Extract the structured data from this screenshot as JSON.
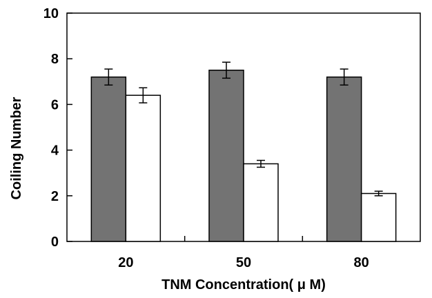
{
  "chart_data": {
    "type": "bar",
    "title": "",
    "xlabel": "TNM Concentration( μ M)",
    "ylabel": "Coiling Number",
    "ylim": [
      0,
      10
    ],
    "yticks": [
      0,
      2,
      4,
      6,
      8,
      10
    ],
    "categories": [
      "20",
      "50",
      "80"
    ],
    "series": [
      {
        "color": "#737373",
        "values": [
          7.2,
          7.5,
          7.2
        ],
        "errors": [
          0.35,
          0.35,
          0.35
        ]
      },
      {
        "color": "#ffffff",
        "values": [
          6.4,
          3.4,
          2.1
        ],
        "errors": [
          0.33,
          0.15,
          0.1
        ]
      }
    ],
    "grid": false,
    "legend": "none"
  }
}
